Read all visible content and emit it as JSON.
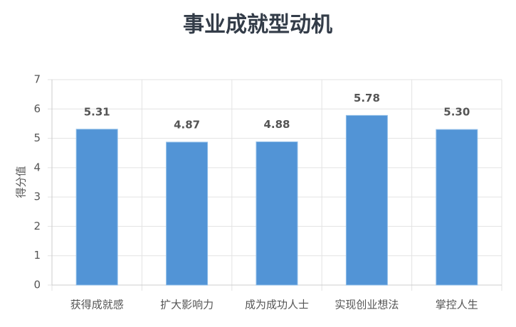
{
  "chart_data": {
    "type": "bar",
    "title": "事业成就型动机",
    "y_label": "得分值",
    "categories": [
      "获得成就感",
      "扩大影响力",
      "成为成功人士",
      "实现创业想法",
      "掌控人生"
    ],
    "values": [
      5.31,
      4.87,
      4.88,
      5.78,
      5.3
    ],
    "value_labels": [
      "5.31",
      "4.87",
      "4.88",
      "5.78",
      "5.30"
    ],
    "color": "#5294d6",
    "ylim": [
      0,
      7
    ],
    "yticks": [
      0,
      1,
      2,
      3,
      4,
      5,
      6,
      7
    ],
    "grid": true
  }
}
